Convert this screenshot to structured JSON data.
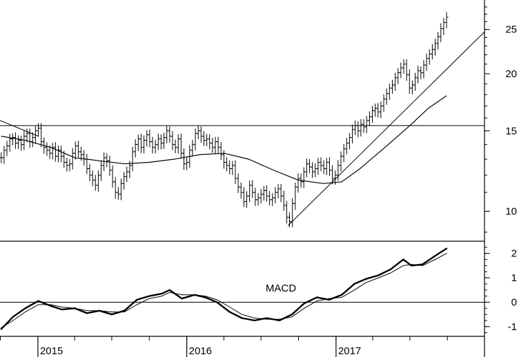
{
  "chart_data": [
    {
      "type": "line",
      "subtype": "ohlc-bars",
      "title": "",
      "y_scale": "log",
      "ylim": [
        8.6,
        29
      ],
      "y_ticks": [
        10,
        15,
        20,
        25
      ],
      "y_tick_labels": [
        "10",
        "15",
        "20",
        "25"
      ],
      "x_range": [
        "2014-09-30",
        "2017-12-31"
      ],
      "x_year_ticks": [
        "2015-01-01",
        "2016-01-01",
        "2017-01-01"
      ],
      "x_year_labels": [
        "2015",
        "2016",
        "2017"
      ],
      "price_close": [
        [
          "2014-10-03",
          13.1
        ],
        [
          "2014-10-10",
          13.6
        ],
        [
          "2014-10-17",
          13.9
        ],
        [
          "2014-10-24",
          14.4
        ],
        [
          "2014-10-31",
          14.5
        ],
        [
          "2014-11-07",
          14.1
        ],
        [
          "2014-11-14",
          14.3
        ],
        [
          "2014-11-21",
          14.0
        ],
        [
          "2014-11-28",
          14.6
        ],
        [
          "2014-12-05",
          14.8
        ],
        [
          "2014-12-12",
          14.2
        ],
        [
          "2014-12-19",
          14.5
        ],
        [
          "2014-12-26",
          15.0
        ],
        [
          "2015-01-02",
          15.2
        ],
        [
          "2015-01-09",
          14.2
        ],
        [
          "2015-01-16",
          13.8
        ],
        [
          "2015-01-23",
          13.6
        ],
        [
          "2015-01-30",
          13.4
        ],
        [
          "2015-02-06",
          13.8
        ],
        [
          "2015-02-13",
          13.2
        ],
        [
          "2015-02-20",
          13.6
        ],
        [
          "2015-02-27",
          13.2
        ],
        [
          "2015-03-06",
          12.8
        ],
        [
          "2015-03-13",
          12.6
        ],
        [
          "2015-03-20",
          12.7
        ],
        [
          "2015-03-27",
          13.4
        ],
        [
          "2015-04-03",
          13.9
        ],
        [
          "2015-04-10",
          13.5
        ],
        [
          "2015-04-17",
          13.3
        ],
        [
          "2015-04-24",
          13.0
        ],
        [
          "2015-05-01",
          12.4
        ],
        [
          "2015-05-08",
          12.0
        ],
        [
          "2015-05-15",
          11.7
        ],
        [
          "2015-05-22",
          11.4
        ],
        [
          "2015-05-29",
          12.0
        ],
        [
          "2015-06-05",
          12.6
        ],
        [
          "2015-06-12",
          13.1
        ],
        [
          "2015-06-19",
          12.9
        ],
        [
          "2015-06-26",
          12.3
        ],
        [
          "2015-07-03",
          11.6
        ],
        [
          "2015-07-10",
          11.0
        ],
        [
          "2015-07-17",
          10.9
        ],
        [
          "2015-07-24",
          11.5
        ],
        [
          "2015-07-31",
          11.9
        ],
        [
          "2015-08-07",
          12.2
        ],
        [
          "2015-08-14",
          12.6
        ],
        [
          "2015-08-21",
          13.5
        ],
        [
          "2015-08-28",
          14.0
        ],
        [
          "2015-09-04",
          14.4
        ],
        [
          "2015-09-11",
          13.8
        ],
        [
          "2015-09-18",
          14.3
        ],
        [
          "2015-09-25",
          14.7
        ],
        [
          "2015-10-02",
          14.2
        ],
        [
          "2015-10-09",
          13.8
        ],
        [
          "2015-10-16",
          14.0
        ],
        [
          "2015-10-23",
          14.4
        ],
        [
          "2015-10-30",
          14.1
        ],
        [
          "2015-11-06",
          14.5
        ],
        [
          "2015-11-13",
          15.0
        ],
        [
          "2015-11-20",
          14.6
        ],
        [
          "2015-11-27",
          14.0
        ],
        [
          "2015-12-04",
          13.8
        ],
        [
          "2015-12-11",
          14.4
        ],
        [
          "2015-12-18",
          13.4
        ],
        [
          "2015-12-25",
          12.7
        ],
        [
          "2016-01-01",
          12.8
        ],
        [
          "2016-01-08",
          13.6
        ],
        [
          "2016-01-15",
          14.0
        ],
        [
          "2016-01-22",
          14.8
        ],
        [
          "2016-01-29",
          15.0
        ],
        [
          "2016-02-05",
          14.6
        ],
        [
          "2016-02-12",
          14.3
        ],
        [
          "2016-02-19",
          14.4
        ],
        [
          "2016-02-26",
          14.1
        ],
        [
          "2016-03-04",
          13.8
        ],
        [
          "2016-03-11",
          14.2
        ],
        [
          "2016-03-18",
          13.8
        ],
        [
          "2016-03-25",
          13.3
        ],
        [
          "2016-04-01",
          12.8
        ],
        [
          "2016-04-08",
          12.6
        ],
        [
          "2016-04-15",
          12.4
        ],
        [
          "2016-04-22",
          12.6
        ],
        [
          "2016-04-29",
          11.8
        ],
        [
          "2016-05-06",
          11.3
        ],
        [
          "2016-05-13",
          11.0
        ],
        [
          "2016-05-20",
          10.5
        ],
        [
          "2016-05-27",
          10.8
        ],
        [
          "2016-06-03",
          11.4
        ],
        [
          "2016-06-10",
          11.0
        ],
        [
          "2016-06-17",
          10.6
        ],
        [
          "2016-06-24",
          10.7
        ],
        [
          "2016-07-01",
          10.9
        ],
        [
          "2016-07-08",
          11.1
        ],
        [
          "2016-07-15",
          10.8
        ],
        [
          "2016-07-22",
          10.6
        ],
        [
          "2016-07-29",
          10.7
        ],
        [
          "2016-08-05",
          11.0
        ],
        [
          "2016-08-12",
          11.2
        ],
        [
          "2016-08-19",
          10.8
        ],
        [
          "2016-08-26",
          10.3
        ],
        [
          "2016-09-02",
          9.7
        ],
        [
          "2016-09-09",
          9.5
        ],
        [
          "2016-09-16",
          10.4
        ],
        [
          "2016-09-23",
          11.3
        ],
        [
          "2016-09-30",
          11.8
        ],
        [
          "2016-10-07",
          11.6
        ],
        [
          "2016-10-14",
          12.2
        ],
        [
          "2016-10-21",
          12.7
        ],
        [
          "2016-10-28",
          12.5
        ],
        [
          "2016-11-04",
          12.2
        ],
        [
          "2016-11-11",
          12.4
        ],
        [
          "2016-11-18",
          12.8
        ],
        [
          "2016-11-25",
          12.6
        ],
        [
          "2016-12-02",
          12.4
        ],
        [
          "2016-12-09",
          12.8
        ],
        [
          "2016-12-16",
          12.3
        ],
        [
          "2016-12-23",
          11.8
        ],
        [
          "2016-12-30",
          12.0
        ],
        [
          "2017-01-06",
          12.6
        ],
        [
          "2017-01-13",
          13.2
        ],
        [
          "2017-01-20",
          13.7
        ],
        [
          "2017-01-27",
          14.1
        ],
        [
          "2017-02-03",
          14.5
        ],
        [
          "2017-02-10",
          15.1
        ],
        [
          "2017-02-17",
          15.4
        ],
        [
          "2017-02-24",
          15.0
        ],
        [
          "2017-03-03",
          15.5
        ],
        [
          "2017-03-10",
          15.3
        ],
        [
          "2017-03-17",
          15.8
        ],
        [
          "2017-03-24",
          16.1
        ],
        [
          "2017-03-31",
          16.6
        ],
        [
          "2017-04-07",
          16.8
        ],
        [
          "2017-04-14",
          16.5
        ],
        [
          "2017-04-21",
          17.0
        ],
        [
          "2017-04-28",
          17.6
        ],
        [
          "2017-05-05",
          18.1
        ],
        [
          "2017-05-12",
          18.6
        ],
        [
          "2017-05-19",
          18.9
        ],
        [
          "2017-05-26",
          19.6
        ],
        [
          "2017-06-02",
          20.1
        ],
        [
          "2017-06-09",
          20.6
        ],
        [
          "2017-06-16",
          21.0
        ],
        [
          "2017-06-23",
          19.9
        ],
        [
          "2017-06-30",
          18.6
        ],
        [
          "2017-07-07",
          18.9
        ],
        [
          "2017-07-14",
          19.6
        ],
        [
          "2017-07-21",
          20.3
        ],
        [
          "2017-07-28",
          20.1
        ],
        [
          "2017-08-04",
          20.9
        ],
        [
          "2017-08-11",
          21.6
        ],
        [
          "2017-08-18",
          22.1
        ],
        [
          "2017-08-25",
          22.6
        ],
        [
          "2017-09-01",
          23.3
        ],
        [
          "2017-09-08",
          24.1
        ],
        [
          "2017-09-15",
          25.1
        ],
        [
          "2017-09-22",
          25.9
        ],
        [
          "2017-09-29",
          26.6
        ]
      ],
      "bar_half_range_pct": 3.2,
      "moving_average": [
        [
          "2014-10-03",
          14.6
        ],
        [
          "2014-12-01",
          14.3
        ],
        [
          "2015-02-01",
          13.8
        ],
        [
          "2015-04-01",
          13.1
        ],
        [
          "2015-06-01",
          12.9
        ],
        [
          "2015-08-01",
          12.7
        ],
        [
          "2015-10-01",
          12.8
        ],
        [
          "2015-12-01",
          13.0
        ],
        [
          "2016-02-01",
          13.3
        ],
        [
          "2016-04-01",
          13.4
        ],
        [
          "2016-06-01",
          13.0
        ],
        [
          "2016-08-01",
          12.3
        ],
        [
          "2016-10-01",
          11.7
        ],
        [
          "2016-12-01",
          11.5
        ],
        [
          "2017-01-15",
          11.6
        ],
        [
          "2017-03-01",
          12.4
        ],
        [
          "2017-05-01",
          13.8
        ],
        [
          "2017-07-01",
          15.4
        ],
        [
          "2017-08-15",
          16.8
        ],
        [
          "2017-09-29",
          17.9
        ]
      ],
      "horizontal_lines": [
        15.4
      ],
      "trend_lines": [
        {
          "from": [
            "2014-09-30",
            15.8
          ],
          "to": [
            "2015-01-02",
            14.6
          ]
        },
        {
          "from": [
            "2016-09-05",
            9.3
          ],
          "to": [
            "2017-12-31",
            24.7
          ]
        }
      ]
    },
    {
      "type": "line",
      "title": "MACD",
      "ylim": [
        -1.4,
        2.5
      ],
      "y_ticks": [
        -1,
        0,
        1,
        2
      ],
      "y_tick_labels": [
        "-1",
        "0",
        "1",
        "2"
      ],
      "zero_line": 0,
      "series": [
        {
          "role": "macd",
          "points": [
            [
              "2014-10-03",
              -1.1
            ],
            [
              "2014-11-01",
              -0.6
            ],
            [
              "2014-12-01",
              -0.25
            ],
            [
              "2015-01-02",
              0.05
            ],
            [
              "2015-02-01",
              -0.15
            ],
            [
              "2015-03-01",
              -0.3
            ],
            [
              "2015-04-01",
              -0.25
            ],
            [
              "2015-05-01",
              -0.45
            ],
            [
              "2015-06-01",
              -0.35
            ],
            [
              "2015-07-01",
              -0.5
            ],
            [
              "2015-08-01",
              -0.35
            ],
            [
              "2015-09-01",
              0.1
            ],
            [
              "2015-10-01",
              0.25
            ],
            [
              "2015-11-01",
              0.35
            ],
            [
              "2015-11-20",
              0.5
            ],
            [
              "2015-12-20",
              0.15
            ],
            [
              "2016-01-20",
              0.3
            ],
            [
              "2016-02-15",
              0.2
            ],
            [
              "2016-03-15",
              0.0
            ],
            [
              "2016-04-15",
              -0.4
            ],
            [
              "2016-05-15",
              -0.65
            ],
            [
              "2016-06-15",
              -0.75
            ],
            [
              "2016-07-15",
              -0.65
            ],
            [
              "2016-08-15",
              -0.75
            ],
            [
              "2016-09-15",
              -0.5
            ],
            [
              "2016-10-15",
              -0.05
            ],
            [
              "2016-11-15",
              0.2
            ],
            [
              "2016-12-15",
              0.1
            ],
            [
              "2017-01-15",
              0.3
            ],
            [
              "2017-02-15",
              0.75
            ],
            [
              "2017-03-15",
              0.95
            ],
            [
              "2017-04-15",
              1.1
            ],
            [
              "2017-05-15",
              1.35
            ],
            [
              "2017-06-15",
              1.75
            ],
            [
              "2017-07-05",
              1.5
            ],
            [
              "2017-08-01",
              1.55
            ],
            [
              "2017-09-01",
              1.9
            ],
            [
              "2017-09-29",
              2.2
            ]
          ]
        },
        {
          "role": "signal",
          "points": [
            [
              "2014-10-03",
              -1.05
            ],
            [
              "2014-11-01",
              -0.75
            ],
            [
              "2014-12-01",
              -0.4
            ],
            [
              "2015-01-02",
              -0.1
            ],
            [
              "2015-02-01",
              -0.1
            ],
            [
              "2015-03-01",
              -0.2
            ],
            [
              "2015-04-01",
              -0.25
            ],
            [
              "2015-05-01",
              -0.35
            ],
            [
              "2015-06-01",
              -0.35
            ],
            [
              "2015-07-01",
              -0.4
            ],
            [
              "2015-08-01",
              -0.4
            ],
            [
              "2015-09-01",
              -0.1
            ],
            [
              "2015-10-01",
              0.15
            ],
            [
              "2015-11-01",
              0.25
            ],
            [
              "2015-11-20",
              0.4
            ],
            [
              "2015-12-20",
              0.3
            ],
            [
              "2016-01-20",
              0.3
            ],
            [
              "2016-02-15",
              0.25
            ],
            [
              "2016-03-15",
              0.1
            ],
            [
              "2016-04-15",
              -0.2
            ],
            [
              "2016-05-15",
              -0.5
            ],
            [
              "2016-06-15",
              -0.65
            ],
            [
              "2016-07-15",
              -0.7
            ],
            [
              "2016-08-15",
              -0.7
            ],
            [
              "2016-09-15",
              -0.6
            ],
            [
              "2016-10-15",
              -0.25
            ],
            [
              "2016-11-15",
              0.05
            ],
            [
              "2016-12-15",
              0.15
            ],
            [
              "2017-01-15",
              0.2
            ],
            [
              "2017-02-15",
              0.5
            ],
            [
              "2017-03-15",
              0.8
            ],
            [
              "2017-04-15",
              1.0
            ],
            [
              "2017-05-15",
              1.2
            ],
            [
              "2017-06-15",
              1.5
            ],
            [
              "2017-07-05",
              1.55
            ],
            [
              "2017-08-01",
              1.5
            ],
            [
              "2017-09-01",
              1.75
            ],
            [
              "2017-09-29",
              2.0
            ]
          ]
        }
      ]
    }
  ]
}
